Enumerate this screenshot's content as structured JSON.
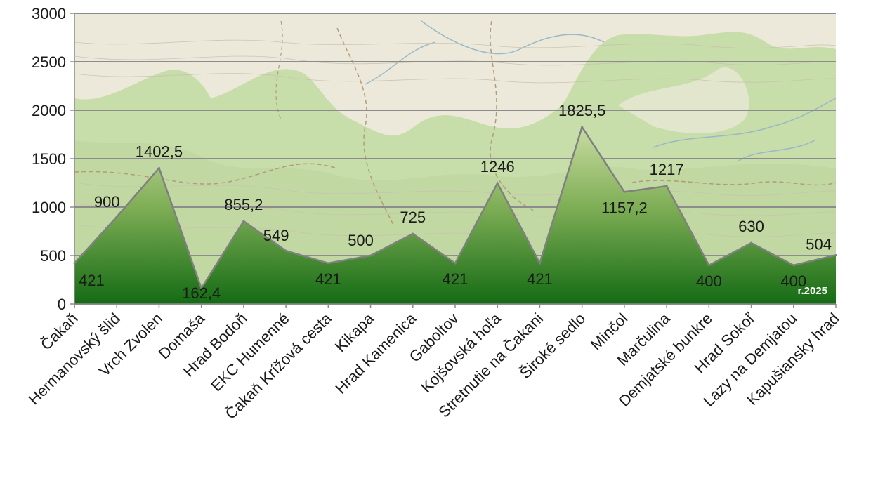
{
  "chart_data": {
    "type": "area",
    "title": "",
    "xlabel": "",
    "ylabel": "",
    "ylim": [
      0,
      3000
    ],
    "yticks": [
      0,
      500,
      1000,
      1500,
      2000,
      2500,
      3000
    ],
    "grid": true,
    "background": "topographic map",
    "categories": [
      "Čakaň",
      "Hermanovský šlid",
      "Vrch Zvolen",
      "Domaša",
      "Hrad Bodoň",
      "EKC Humenné",
      "Čakaň Krížová cesta",
      "Kikapa",
      "Hrad Kamenica",
      "Gaboltov",
      "Kojšovská hoľa",
      "Stretnutie na Čakani",
      "Široké sedlo",
      "Minčol",
      "Marčulina",
      "Demjatské bunkre",
      "Hrad Sokoľ",
      "Lazy na Demjatou",
      "Kapušiansky hrad"
    ],
    "values": [
      421,
      900,
      1402.5,
      162.4,
      855.2,
      549,
      421,
      500,
      725,
      421,
      1246,
      421,
      1825.5,
      1157.2,
      1217,
      400,
      630,
      400,
      504
    ],
    "data_labels": [
      "421",
      "900",
      "1402,5",
      "162,4",
      "855,2",
      "549",
      "421",
      "500",
      "725",
      "421",
      "1246",
      "421",
      "1825,5",
      "1157,2",
      "1217",
      "400",
      "630",
      "400",
      "504"
    ],
    "annotation": "r.2025",
    "colors": {
      "fill_top": "#c4d8a0",
      "fill_bottom": "#176b17",
      "line": "#808080",
      "grid": "#8c8c8c",
      "map_base": "#ece9da",
      "map_forest": "#c5dca8"
    }
  }
}
